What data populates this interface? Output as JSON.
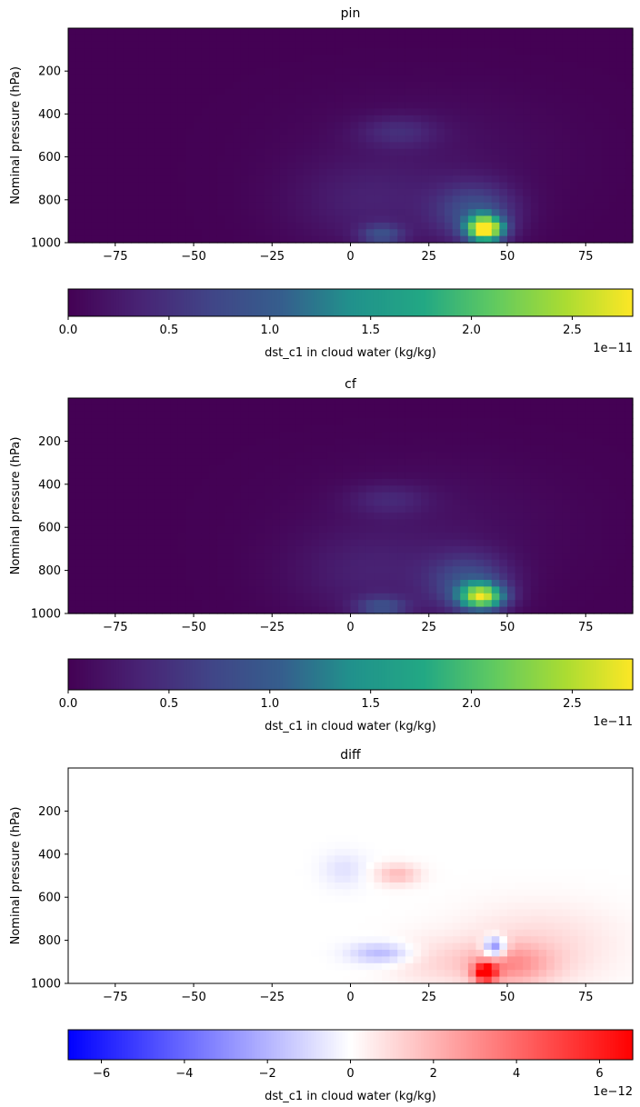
{
  "chart_data": [
    {
      "type": "heatmap",
      "title": "pin",
      "ylabel": "Nominal pressure (hPa)",
      "xlim": [
        -90,
        90
      ],
      "ylim": [
        1000,
        0
      ],
      "xticks": [
        "−75",
        "−50",
        "−25",
        "0",
        "25",
        "50",
        "75"
      ],
      "xtick_values": [
        -75,
        -50,
        -25,
        0,
        25,
        50,
        75
      ],
      "yticks": [
        "200",
        "400",
        "600",
        "800",
        "1000"
      ],
      "ytick_values": [
        200,
        400,
        600,
        800,
        1000
      ],
      "colormap": "viridis",
      "colorbar": {
        "label": "dst_c1 in cloud water (kg/kg)",
        "range": [
          0,
          2.8e-11
        ],
        "ticks": [
          "0.0",
          "0.5",
          "1.0",
          "1.5",
          "2.0",
          "2.5"
        ],
        "tick_values": [
          0,
          0.5,
          1.0,
          1.5,
          2.0,
          2.5
        ],
        "offset": "1e−11"
      },
      "features": [
        {
          "lat": 43,
          "p": 955,
          "sigma_lat": 4,
          "sigma_p": 30,
          "value": 2.7e-11
        },
        {
          "lat": 40,
          "p": 900,
          "sigma_lat": 9,
          "sigma_p": 70,
          "value": 8e-12
        },
        {
          "lat": 10,
          "p": 975,
          "sigma_lat": 5,
          "sigma_p": 25,
          "value": 7e-12
        },
        {
          "lat": 15,
          "p": 600,
          "sigma_lat": 9,
          "sigma_p": 45,
          "value": 3.5e-12
        },
        {
          "lat": 5,
          "p": 870,
          "sigma_lat": 18,
          "sigma_p": 110,
          "value": 2.5e-12
        },
        {
          "lat": 25,
          "p": 700,
          "sigma_lat": 30,
          "sigma_p": 200,
          "value": 1.5e-12
        }
      ]
    },
    {
      "type": "heatmap",
      "title": "cf",
      "ylabel": "Nominal pressure (hPa)",
      "xlim": [
        -90,
        90
      ],
      "ylim": [
        1000,
        0
      ],
      "xticks": [
        "−75",
        "−50",
        "−25",
        "0",
        "25",
        "50",
        "75"
      ],
      "xtick_values": [
        -75,
        -50,
        -25,
        0,
        25,
        50,
        75
      ],
      "yticks": [
        "200",
        "400",
        "600",
        "800",
        "1000"
      ],
      "ytick_values": [
        200,
        400,
        600,
        800,
        1000
      ],
      "colormap": "viridis",
      "colorbar": {
        "label": "dst_c1 in cloud water (kg/kg)",
        "range": [
          0,
          2.8e-11
        ],
        "ticks": [
          "0.0",
          "0.5",
          "1.0",
          "1.5",
          "2.0",
          "2.5"
        ],
        "tick_values": [
          0,
          0.5,
          1.0,
          1.5,
          2.0,
          2.5
        ],
        "offset": "1e−11"
      },
      "features": [
        {
          "lat": 42,
          "p": 945,
          "sigma_lat": 5,
          "sigma_p": 30,
          "value": 2.1e-11
        },
        {
          "lat": 38,
          "p": 900,
          "sigma_lat": 9,
          "sigma_p": 70,
          "value": 8e-12
        },
        {
          "lat": 10,
          "p": 980,
          "sigma_lat": 6,
          "sigma_p": 25,
          "value": 7e-12
        },
        {
          "lat": 12,
          "p": 590,
          "sigma_lat": 9,
          "sigma_p": 45,
          "value": 3e-12
        },
        {
          "lat": 5,
          "p": 870,
          "sigma_lat": 18,
          "sigma_p": 110,
          "value": 2.5e-12
        },
        {
          "lat": 25,
          "p": 700,
          "sigma_lat": 30,
          "sigma_p": 200,
          "value": 1.5e-12
        }
      ]
    },
    {
      "type": "heatmap",
      "title": "diff",
      "ylabel": "Nominal pressure (hPa)",
      "xlim": [
        -90,
        90
      ],
      "ylim": [
        1000,
        0
      ],
      "xticks": [
        "−75",
        "−50",
        "−25",
        "0",
        "25",
        "50",
        "75"
      ],
      "xtick_values": [
        -75,
        -50,
        -25,
        0,
        25,
        50,
        75
      ],
      "yticks": [
        "200",
        "400",
        "600",
        "800",
        "1000"
      ],
      "ytick_values": [
        200,
        400,
        600,
        800,
        1000
      ],
      "colormap": "bwr",
      "colorbar": {
        "label": "dst_c1 in cloud water (kg/kg)",
        "range": [
          -6.8e-12,
          6.8e-12
        ],
        "ticks": [
          "−6",
          "−4",
          "−2",
          "0",
          "2",
          "4",
          "6"
        ],
        "tick_values": [
          -6,
          -4,
          -2,
          0,
          2,
          4,
          6
        ],
        "offset": "1e−12"
      },
      "features": [
        {
          "lat": 43,
          "p": 965,
          "sigma_lat": 2.5,
          "sigma_p": 22,
          "value": 6.5e-12
        },
        {
          "lat": 46,
          "p": 880,
          "sigma_lat": 2.5,
          "sigma_p": 25,
          "value": -4.5e-12
        },
        {
          "lat": 50,
          "p": 940,
          "sigma_lat": 10,
          "sigma_p": 50,
          "value": 2.5e-12
        },
        {
          "lat": 10,
          "p": 900,
          "sigma_lat": 7,
          "sigma_p": 25,
          "value": -2e-12
        },
        {
          "lat": 15,
          "p": 610,
          "sigma_lat": 5,
          "sigma_p": 30,
          "value": 1.8e-12
        },
        {
          "lat": -2,
          "p": 590,
          "sigma_lat": 5,
          "sigma_p": 50,
          "value": -8e-13
        },
        {
          "lat": 60,
          "p": 870,
          "sigma_lat": 18,
          "sigma_p": 100,
          "value": 1e-12
        },
        {
          "lat": 25,
          "p": 930,
          "sigma_lat": 10,
          "sigma_p": 60,
          "value": 8e-13
        }
      ]
    }
  ]
}
